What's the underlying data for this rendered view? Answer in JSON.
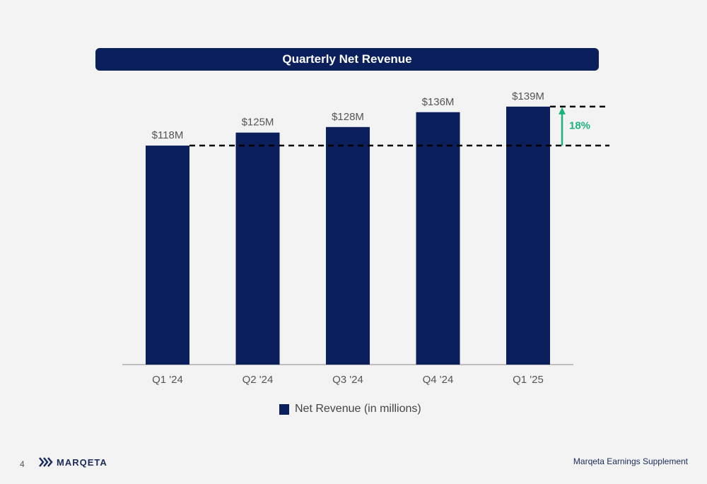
{
  "chart_data": {
    "type": "bar",
    "title": "Quarterly Net Revenue",
    "categories": [
      "Q1 '24",
      "Q2 '24",
      "Q3 '24",
      "Q4 '24",
      "Q1 '25"
    ],
    "series": [
      {
        "name": "Net Revenue (in millions)",
        "values": [
          118,
          125,
          128,
          136,
          139
        ],
        "color": "#0a1f5c"
      }
    ],
    "data_labels": [
      "$118M",
      "$125M",
      "$128M",
      "$136M",
      "$139M"
    ],
    "ylim": [
      0,
      150
    ],
    "grid": false,
    "legend_placement": "bottom-center",
    "annotation": {
      "text": "18%",
      "from_value": 118,
      "to_value": 139,
      "color": "#1db37a"
    }
  },
  "footer": {
    "page_number": "4",
    "logo_text": "MARQETA",
    "right_text": "Marqeta Earnings Supplement"
  }
}
